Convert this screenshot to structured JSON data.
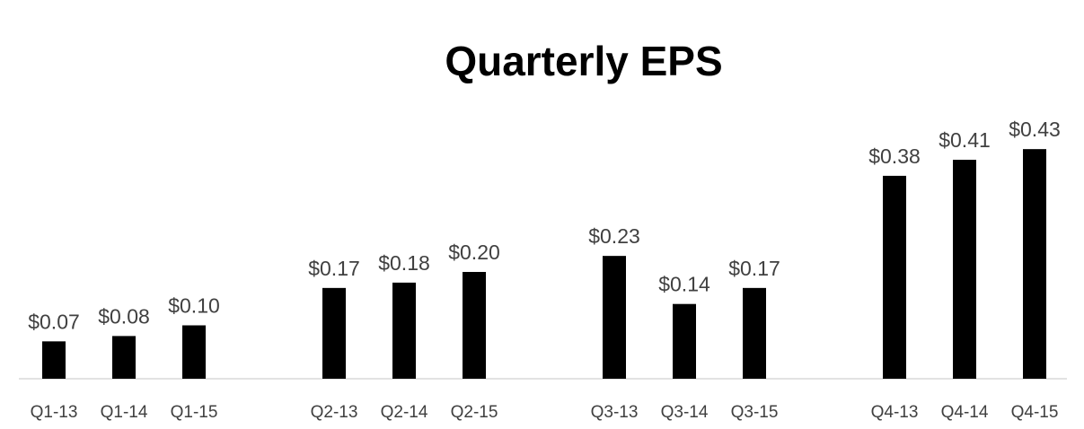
{
  "chart_data": {
    "type": "bar",
    "title": "Quarterly EPS",
    "categories": [
      "Q1-13",
      "Q1-14",
      "Q1-15",
      null,
      "Q2-13",
      "Q2-14",
      "Q2-15",
      null,
      "Q3-13",
      "Q3-14",
      "Q3-15",
      null,
      "Q4-13",
      "Q4-14",
      "Q4-15"
    ],
    "values": [
      0.07,
      0.08,
      0.1,
      null,
      0.17,
      0.18,
      0.2,
      null,
      0.23,
      0.14,
      0.17,
      null,
      0.38,
      0.41,
      0.43
    ],
    "value_labels": [
      "$0.07",
      "$0.08",
      "$0.10",
      null,
      "$0.17",
      "$0.18",
      "$0.20",
      null,
      "$0.23",
      "$0.14",
      "$0.17",
      null,
      "$0.38",
      "$0.41",
      "$0.43"
    ],
    "color": "#000000",
    "ylim": [
      0,
      0.5
    ]
  }
}
